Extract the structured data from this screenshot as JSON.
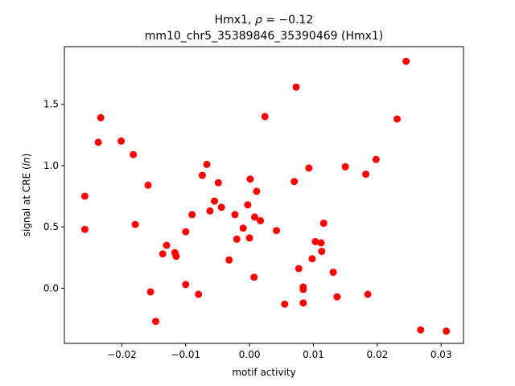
{
  "chart_data": {
    "type": "scatter",
    "title_prefix": "Hmx1, ",
    "title_rho_symbol": "ρ",
    "title_rho_value": " = −0.12",
    "subtitle": "mm10_chr5_35389846_35390469 (Hmx1)",
    "xlabel": "motif activity",
    "ylabel_prefix": "signal at CRE (",
    "ylabel_italic": "ln",
    "ylabel_suffix": ")",
    "xlim": [
      -0.029,
      0.0335
    ],
    "ylim": [
      -0.45,
      1.97
    ],
    "xticks": [
      -0.02,
      -0.01,
      0.0,
      0.01,
      0.02,
      0.03
    ],
    "xtick_labels": [
      "−0.02",
      "−0.01",
      "0.00",
      "0.01",
      "0.02",
      "0.03"
    ],
    "yticks": [
      0.0,
      0.5,
      1.0,
      1.5
    ],
    "ytick_labels": [
      "0.0",
      "0.5",
      "1.0",
      "1.5"
    ],
    "marker_color": "#ff0000",
    "grid": false,
    "legend": "none",
    "points": [
      {
        "x": -0.0258,
        "y": 0.75
      },
      {
        "x": -0.0258,
        "y": 0.48
      },
      {
        "x": -0.0237,
        "y": 1.19
      },
      {
        "x": -0.0233,
        "y": 1.39
      },
      {
        "x": -0.0201,
        "y": 1.2
      },
      {
        "x": -0.0182,
        "y": 1.09
      },
      {
        "x": -0.0179,
        "y": 0.52
      },
      {
        "x": -0.0159,
        "y": 0.84
      },
      {
        "x": -0.0155,
        "y": -0.03
      },
      {
        "x": -0.0147,
        "y": -0.27
      },
      {
        "x": -0.0136,
        "y": 0.28
      },
      {
        "x": -0.013,
        "y": 0.35
      },
      {
        "x": -0.0117,
        "y": 0.29
      },
      {
        "x": -0.0115,
        "y": 0.26
      },
      {
        "x": -0.01,
        "y": 0.46
      },
      {
        "x": -0.01,
        "y": 0.03
      },
      {
        "x": -0.009,
        "y": 0.6
      },
      {
        "x": -0.008,
        "y": -0.05
      },
      {
        "x": -0.0074,
        "y": 0.92
      },
      {
        "x": -0.0067,
        "y": 1.01
      },
      {
        "x": -0.0062,
        "y": 0.63
      },
      {
        "x": -0.0055,
        "y": 0.71
      },
      {
        "x": -0.0049,
        "y": 0.86
      },
      {
        "x": -0.0044,
        "y": 0.66
      },
      {
        "x": -0.0032,
        "y": 0.23
      },
      {
        "x": -0.0023,
        "y": 0.6
      },
      {
        "x": -0.002,
        "y": 0.4
      },
      {
        "x": -0.001,
        "y": 0.49
      },
      {
        "x": -0.0003,
        "y": 0.68
      },
      {
        "x": 0.0,
        "y": 0.41
      },
      {
        "x": 0.0001,
        "y": 0.89
      },
      {
        "x": 0.0007,
        "y": 0.09
      },
      {
        "x": 0.0008,
        "y": 0.58
      },
      {
        "x": 0.0011,
        "y": 0.79
      },
      {
        "x": 0.0017,
        "y": 0.55
      },
      {
        "x": 0.0024,
        "y": 1.4
      },
      {
        "x": 0.0042,
        "y": 0.47
      },
      {
        "x": 0.0055,
        "y": -0.13
      },
      {
        "x": 0.007,
        "y": 0.87
      },
      {
        "x": 0.0073,
        "y": 1.64
      },
      {
        "x": 0.0077,
        "y": 0.16
      },
      {
        "x": 0.0084,
        "y": 0.01
      },
      {
        "x": 0.0084,
        "y": -0.01
      },
      {
        "x": 0.0084,
        "y": -0.12
      },
      {
        "x": 0.0093,
        "y": 0.98
      },
      {
        "x": 0.0098,
        "y": 0.24
      },
      {
        "x": 0.0103,
        "y": 0.38
      },
      {
        "x": 0.0112,
        "y": 0.37
      },
      {
        "x": 0.0113,
        "y": 0.3
      },
      {
        "x": 0.0116,
        "y": 0.53
      },
      {
        "x": 0.0131,
        "y": 0.13
      },
      {
        "x": 0.0137,
        "y": -0.07
      },
      {
        "x": 0.015,
        "y": 0.99
      },
      {
        "x": 0.0182,
        "y": 0.93
      },
      {
        "x": 0.0185,
        "y": -0.05
      },
      {
        "x": 0.0198,
        "y": 1.05
      },
      {
        "x": 0.0231,
        "y": 1.38
      },
      {
        "x": 0.0245,
        "y": 1.85
      },
      {
        "x": 0.0268,
        "y": -0.34
      },
      {
        "x": 0.0308,
        "y": -0.35
      }
    ]
  }
}
